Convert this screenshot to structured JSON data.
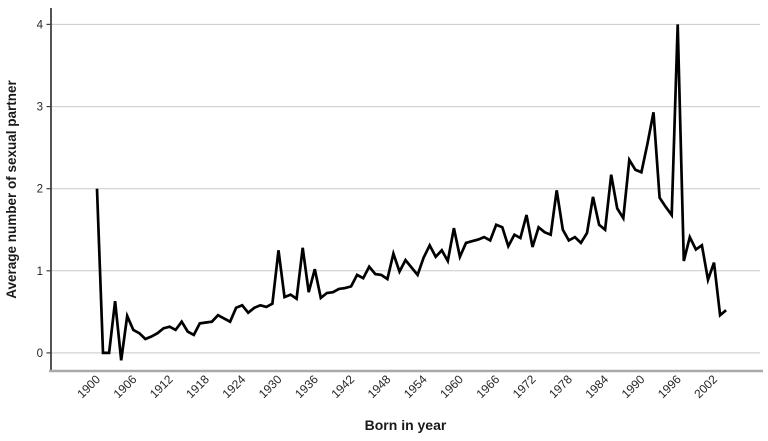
{
  "chart_data": {
    "type": "line",
    "title": "",
    "xlabel": "Born in year",
    "ylabel": "Average number of sexual partner",
    "legend": "none",
    "grid": "horizontal-only",
    "background": "#ffffff",
    "xlim": [
      1892.4,
      2009.6
    ],
    "ylim": [
      -0.22,
      4.2
    ],
    "x_ticks": [
      1900,
      1906,
      1912,
      1918,
      1924,
      1930,
      1936,
      1942,
      1948,
      1954,
      1960,
      1966,
      1972,
      1978,
      1984,
      1990,
      1996,
      2002
    ],
    "x_tick_labels": [
      "1900",
      "1906",
      "1912",
      "1918",
      "1924",
      "1930",
      "1936",
      "1942",
      "1948",
      "1954",
      "1960",
      "1966",
      "1972",
      "1978",
      "1984",
      "1990",
      "1996",
      "2002"
    ],
    "y_ticks": [
      0,
      1,
      2,
      3,
      4
    ],
    "y_tick_labels": [
      "0",
      "1",
      "2",
      "3",
      "4"
    ],
    "colors": {
      "line": "#000000",
      "grid": "#c9c9c9",
      "y_axis": "#404040",
      "x_axis": "#a9a9a9",
      "text": "#262626"
    },
    "series": [
      {
        "name": "Average number of sexual partner",
        "x": [
          1900,
          1901,
          1902,
          1903,
          1904,
          1905,
          1906,
          1907,
          1908,
          1909,
          1910,
          1911,
          1912,
          1913,
          1914,
          1915,
          1916,
          1917,
          1918,
          1919,
          1920,
          1921,
          1922,
          1923,
          1924,
          1925,
          1926,
          1927,
          1928,
          1929,
          1930,
          1931,
          1932,
          1933,
          1934,
          1935,
          1936,
          1937,
          1938,
          1939,
          1940,
          1941,
          1942,
          1943,
          1944,
          1945,
          1946,
          1947,
          1948,
          1949,
          1950,
          1951,
          1952,
          1953,
          1954,
          1955,
          1956,
          1957,
          1958,
          1959,
          1960,
          1961,
          1962,
          1963,
          1964,
          1965,
          1966,
          1967,
          1968,
          1969,
          1970,
          1971,
          1972,
          1973,
          1974,
          1975,
          1976,
          1977,
          1978,
          1979,
          1980,
          1981,
          1982,
          1983,
          1984,
          1985,
          1986,
          1987,
          1988,
          1989,
          1990,
          1991,
          1992,
          1993,
          1994,
          1995,
          1996,
          1997,
          1998,
          1999,
          2000,
          2001,
          2002,
          2003,
          2004
        ],
        "values": [
          2.0,
          0.0,
          0.0,
          0.63,
          -0.09,
          0.45,
          0.28,
          0.24,
          0.17,
          0.2,
          0.24,
          0.3,
          0.32,
          0.28,
          0.38,
          0.26,
          0.22,
          0.36,
          0.37,
          0.38,
          0.46,
          0.42,
          0.38,
          0.55,
          0.58,
          0.49,
          0.55,
          0.58,
          0.56,
          0.6,
          1.25,
          0.68,
          0.71,
          0.66,
          1.28,
          0.74,
          1.02,
          0.67,
          0.73,
          0.74,
          0.78,
          0.79,
          0.81,
          0.95,
          0.91,
          1.05,
          0.96,
          0.95,
          0.9,
          1.21,
          0.99,
          1.13,
          1.04,
          0.95,
          1.16,
          1.31,
          1.17,
          1.25,
          1.12,
          1.52,
          1.17,
          1.34,
          1.36,
          1.38,
          1.41,
          1.37,
          1.56,
          1.53,
          1.3,
          1.44,
          1.4,
          1.68,
          1.29,
          1.53,
          1.47,
          1.44,
          1.98,
          1.5,
          1.37,
          1.41,
          1.34,
          1.46,
          1.9,
          1.56,
          1.5,
          2.17,
          1.76,
          1.64,
          2.35,
          2.23,
          2.2,
          2.55,
          2.93,
          1.89,
          1.78,
          1.68,
          4.0,
          1.12,
          1.41,
          1.26,
          1.31,
          0.89,
          1.1,
          0.46,
          0.52
        ]
      }
    ]
  }
}
